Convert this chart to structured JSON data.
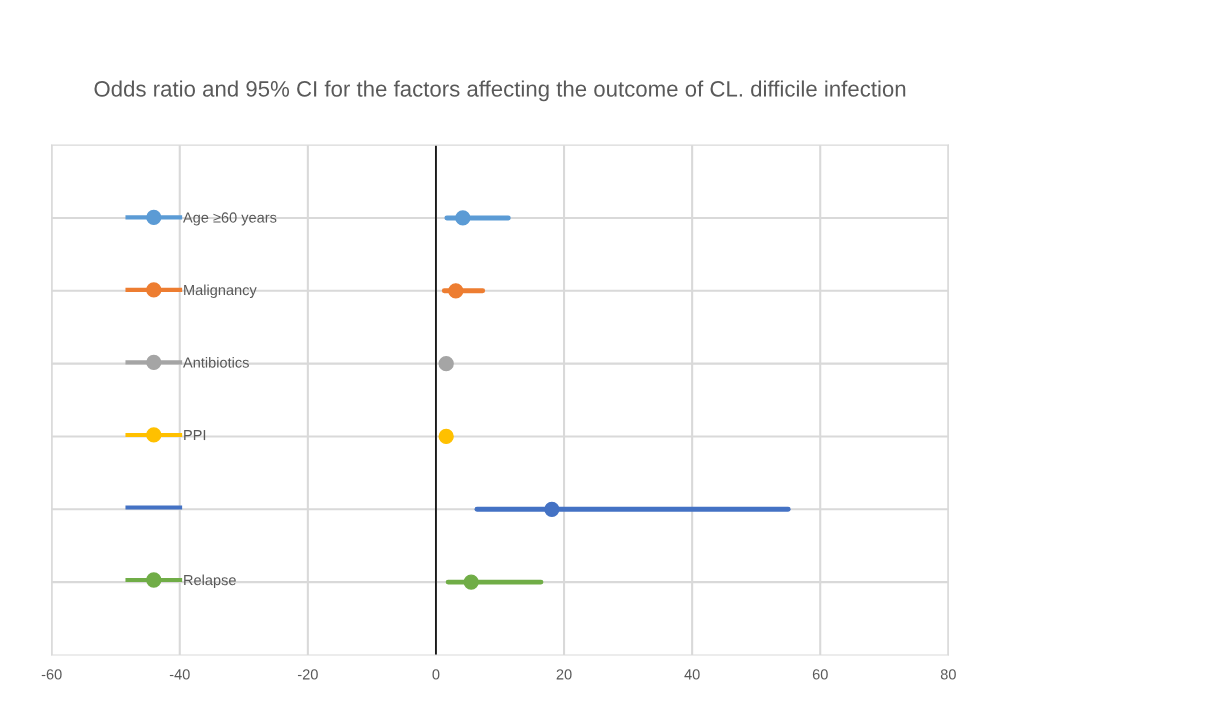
{
  "chart_data": {
    "type": "scatter",
    "orientation": "horizontal",
    "title": "Odds ratio and 95% CI for the factors affecting the outcome of CL. difficile infection",
    "categories": [
      null,
      null,
      null,
      null,
      null,
      null
    ],
    "series": [
      {
        "name": "Age ≥60 years",
        "color": "#5b9bd5",
        "values": [
          4.2,
          null,
          null,
          null,
          null,
          null
        ],
        "errors": [
          [
            1.7,
            11.3
          ],
          null,
          null,
          null,
          null,
          null
        ]
      },
      {
        "name": "Malignancy",
        "color": "#ed7d31",
        "values": [
          null,
          3.1,
          null,
          null,
          null,
          null
        ],
        "errors": [
          null,
          [
            1.3,
            7.3
          ],
          null,
          null,
          null,
          null
        ]
      },
      {
        "name": "Antibiotics",
        "color": "#a5a5a5",
        "values": [
          null,
          null,
          1.6,
          null,
          null,
          null
        ]
      },
      {
        "name": "PPI",
        "color": "#ffc000",
        "values": [
          null,
          null,
          null,
          1.6,
          null,
          null
        ]
      },
      {
        "color": "#4472c4",
        "values": [
          null,
          null,
          null,
          null,
          18.1,
          null
        ],
        "errors": [
          null,
          null,
          null,
          null,
          [
            6.4,
            55.0
          ],
          null
        ]
      },
      {
        "name": "Relapse",
        "color": "#70ad47",
        "values": [
          null,
          null,
          null,
          null,
          null,
          5.5
        ],
        "errors": [
          null,
          null,
          null,
          null,
          null,
          [
            1.9,
            16.4
          ]
        ]
      }
    ],
    "xlim": [
      -60,
      80
    ],
    "xticks": [
      -60,
      -40,
      -20,
      0,
      20,
      40,
      60,
      80
    ],
    "grid": true,
    "legend": "left",
    "marker": "circle",
    "line_style": "solid",
    "ref_lines": [
      {
        "axis": "x",
        "value": 0,
        "color": "#000000"
      }
    ]
  }
}
